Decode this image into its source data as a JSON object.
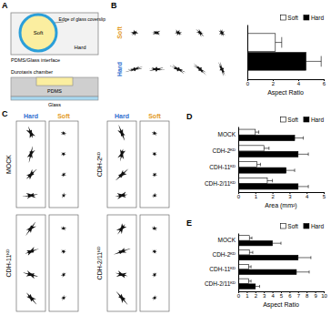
{
  "chart_data": [
    {
      "type": "bar",
      "orientation": "horizontal",
      "categories": [
        null
      ],
      "series": [
        {
          "name": "Soft",
          "color": "#ffffff",
          "values": [
            2.2
          ],
          "errors": [
            0.5
          ]
        },
        {
          "name": "Hard",
          "color": "#000000",
          "values": [
            4.6
          ],
          "errors": [
            1.2
          ]
        }
      ],
      "xlabel": "Aspect Ratio",
      "xlim": [
        0,
        6
      ],
      "xticks": [
        0,
        2,
        4,
        6
      ],
      "legend": "upper right"
    },
    {
      "type": "bar",
      "orientation": "horizontal",
      "categories": [
        "MOCK",
        "CDH-2ᴷᴰ",
        "CDH-11ᴷᴰ",
        "CDH-2/11ᴷᴰ"
      ],
      "series": [
        {
          "name": "Soft",
          "color": "#ffffff",
          "values": [
            1.0,
            1.5,
            1.1,
            1.7
          ],
          "errors": [
            0.2,
            0.3,
            0.2,
            0.3
          ]
        },
        {
          "name": "Hard",
          "color": "#000000",
          "values": [
            3.3,
            3.5,
            2.8,
            3.5
          ],
          "errors": [
            0.5,
            0.6,
            0.5,
            0.6
          ]
        }
      ],
      "xlabel": "Area (mm²)",
      "xlim": [
        0,
        5
      ],
      "xticks": [
        0,
        1,
        2,
        3,
        4,
        5
      ],
      "legend": "upper right"
    },
    {
      "type": "bar",
      "orientation": "horizontal",
      "categories": [
        "MOCK",
        "CDH-2ᴷᴰ",
        "CDH-11ᴷᴰ",
        "CDH-2/11ᴷᴰ"
      ],
      "series": [
        {
          "name": "Soft",
          "color": "#ffffff",
          "values": [
            1.3,
            1.3,
            1.2,
            1.2
          ],
          "errors": [
            0.3,
            0.4,
            0.3,
            0.3
          ]
        },
        {
          "name": "Hard",
          "color": "#000000",
          "values": [
            4.0,
            7.0,
            6.8,
            2.0
          ],
          "errors": [
            1.0,
            1.5,
            1.5,
            0.5
          ]
        }
      ],
      "xlabel": "Aspect Ratio",
      "xlim": [
        0,
        10
      ],
      "xticks": [
        0,
        1,
        2,
        3,
        4,
        5,
        6,
        7,
        8,
        9,
        10
      ],
      "legend": "upper right"
    }
  ],
  "figure": {
    "panel_labels": [
      "A",
      "B",
      "C",
      "D",
      "E"
    ],
    "diagram": {
      "edge": "Edge of glass coverslip",
      "soft": "Soft",
      "hard": "Hard",
      "interface": "PDMS/Glass interface",
      "chamber": "Durotaxis chamber",
      "glass": "Glass",
      "pdms": "PDMS"
    },
    "cell_rows": [
      "Soft",
      "Hard"
    ],
    "panel_c": {
      "columns": [
        "Hard",
        "Soft",
        "Hard",
        "Soft"
      ],
      "rows": [
        [
          "MOCK",
          "CDH-2ᴷᴰ"
        ],
        [
          "CDH-11ᴷᴰ",
          "CDH-2/11ᴷᴰ"
        ]
      ]
    }
  }
}
